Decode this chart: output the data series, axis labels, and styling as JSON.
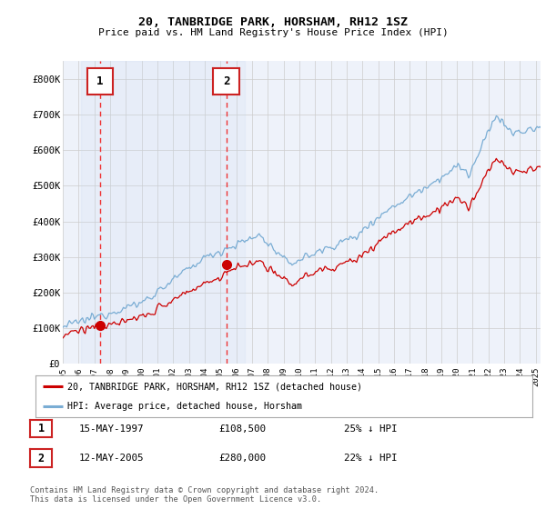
{
  "title": "20, TANBRIDGE PARK, HORSHAM, RH12 1SZ",
  "subtitle": "Price paid vs. HM Land Registry's House Price Index (HPI)",
  "purchase1_date": "15-MAY-1997",
  "purchase1_price": 108500,
  "purchase1_hpi": "25% ↓ HPI",
  "purchase1_year": 1997.37,
  "purchase2_date": "12-MAY-2005",
  "purchase2_price": 280000,
  "purchase2_hpi": "22% ↓ HPI",
  "purchase2_year": 2005.37,
  "hpi_color": "#7aadd4",
  "price_color": "#cc0000",
  "vline_color": "#ee3333",
  "background_color": "#ffffff",
  "plot_bg_color": "#eef2fa",
  "grid_color": "#cccccc",
  "legend_label_price": "20, TANBRIDGE PARK, HORSHAM, RH12 1SZ (detached house)",
  "legend_label_hpi": "HPI: Average price, detached house, Horsham",
  "footer": "Contains HM Land Registry data © Crown copyright and database right 2024.\nThis data is licensed under the Open Government Licence v3.0.",
  "ylim": [
    0,
    850000
  ],
  "yticks": [
    0,
    100000,
    200000,
    300000,
    400000,
    500000,
    600000,
    700000,
    800000
  ],
  "ytick_labels": [
    "£0",
    "£100K",
    "£200K",
    "£300K",
    "£400K",
    "£500K",
    "£600K",
    "£700K",
    "£800K"
  ],
  "xmin": 1995.0,
  "xmax": 2025.3
}
